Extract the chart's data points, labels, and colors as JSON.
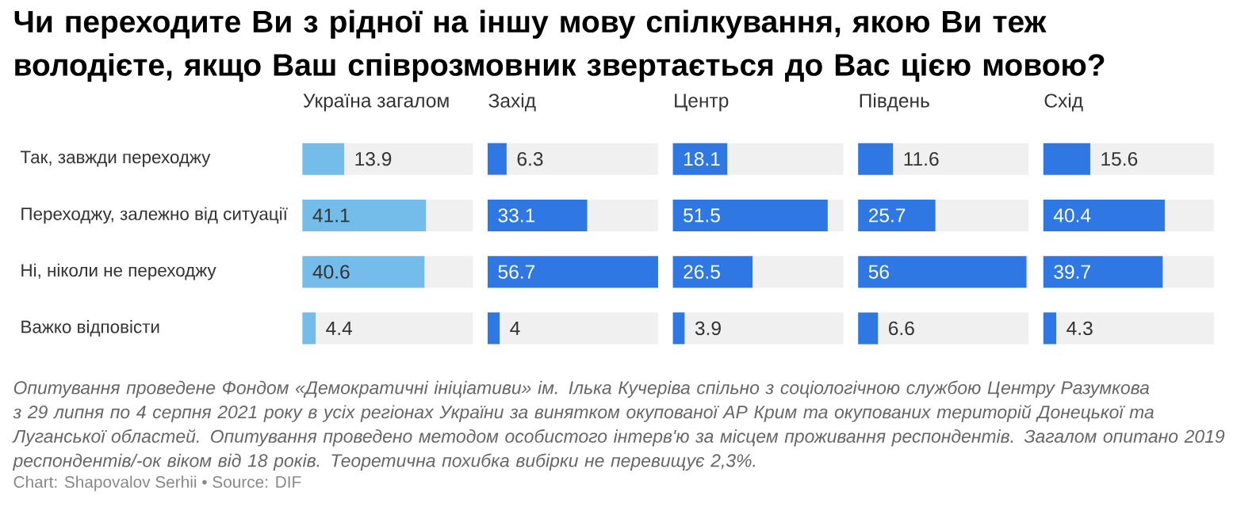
{
  "chart_data": [
    {
      "type": "other",
      "title": "Чи переходите Ви з рідної на іншу мову спілкування, якою Ви теж володієте, якщо Ваш співрозмовник звертається до Вас цією мовою?",
      "annotations": [
        "Опитування проведене Фондом «Демократичні ініціативи» ім. Ілька Кучеріва спільно з соціологічною службою Центру Разумкова з 29 липня по 4 серпня 2021 року в усіх регіонах України за винятком окупованої АР Крим та окупованих територій Донецької та Луганської областей. Опитування проведено методом особистого інтерв'ю за місцем проживання респондентів. Загалом опитано 2019 респондентів/-ок віком від 18 років. Теоретична похибка вибірки не перевищує 2,3%.",
        "Chart: Shapovalov Serhii • Source: DIF"
      ]
    },
    {
      "type": "bar",
      "orientation": "horizontal",
      "title": "Україна загалом",
      "categories": [
        "Так, завжди переходжу",
        "Переходжу, залежно від ситуації",
        "Ні, ніколи не переходжу",
        "Важко відповісти"
      ],
      "values": [
        13.9,
        41.1,
        40.6,
        4.4
      ],
      "color": "#74bdea",
      "xlim": [
        0,
        56.7
      ],
      "data_labels": true,
      "tick_labels": "y",
      "bands": [
        {
          "axis": "x",
          "from": 0,
          "to": 56.7,
          "color": "#f0f0f0"
        }
      ]
    },
    {
      "type": "bar",
      "orientation": "horizontal",
      "title": "Захід",
      "categories": [
        null,
        null,
        null,
        null
      ],
      "values": [
        6.3,
        33.1,
        56.7,
        4
      ],
      "color": "#2f78e4",
      "xlim": [
        0,
        56.7
      ],
      "data_labels": true,
      "tick_labels": false,
      "bands": [
        {
          "axis": "x",
          "from": 0,
          "to": 56.7,
          "color": "#f0f0f0"
        }
      ]
    },
    {
      "type": "bar",
      "orientation": "horizontal",
      "title": "Центр",
      "categories": [
        null,
        null,
        null,
        null
      ],
      "values": [
        18.1,
        51.5,
        26.5,
        3.9
      ],
      "color": "#2f78e4",
      "xlim": [
        0,
        56.7
      ],
      "data_labels": true,
      "tick_labels": false,
      "bands": [
        {
          "axis": "x",
          "from": 0,
          "to": 56.7,
          "color": "#f0f0f0"
        }
      ]
    },
    {
      "type": "bar",
      "orientation": "horizontal",
      "title": "Південь",
      "categories": [
        null,
        null,
        null,
        null
      ],
      "values": [
        11.6,
        25.7,
        56,
        6.6
      ],
      "color": "#2f78e4",
      "xlim": [
        0,
        56.7
      ],
      "data_labels": true,
      "tick_labels": false,
      "bands": [
        {
          "axis": "x",
          "from": 0,
          "to": 56.7,
          "color": "#f0f0f0"
        }
      ]
    },
    {
      "type": "bar",
      "orientation": "horizontal",
      "title": "Схід",
      "categories": [
        null,
        null,
        null,
        null
      ],
      "values": [
        15.6,
        40.4,
        39.7,
        4.3
      ],
      "color": "#2f78e4",
      "xlim": [
        0,
        56.7
      ],
      "data_labels": true,
      "tick_labels": false,
      "bands": [
        {
          "axis": "x",
          "from": 0,
          "to": 56.7,
          "color": "#f0f0f0"
        }
      ]
    }
  ]
}
